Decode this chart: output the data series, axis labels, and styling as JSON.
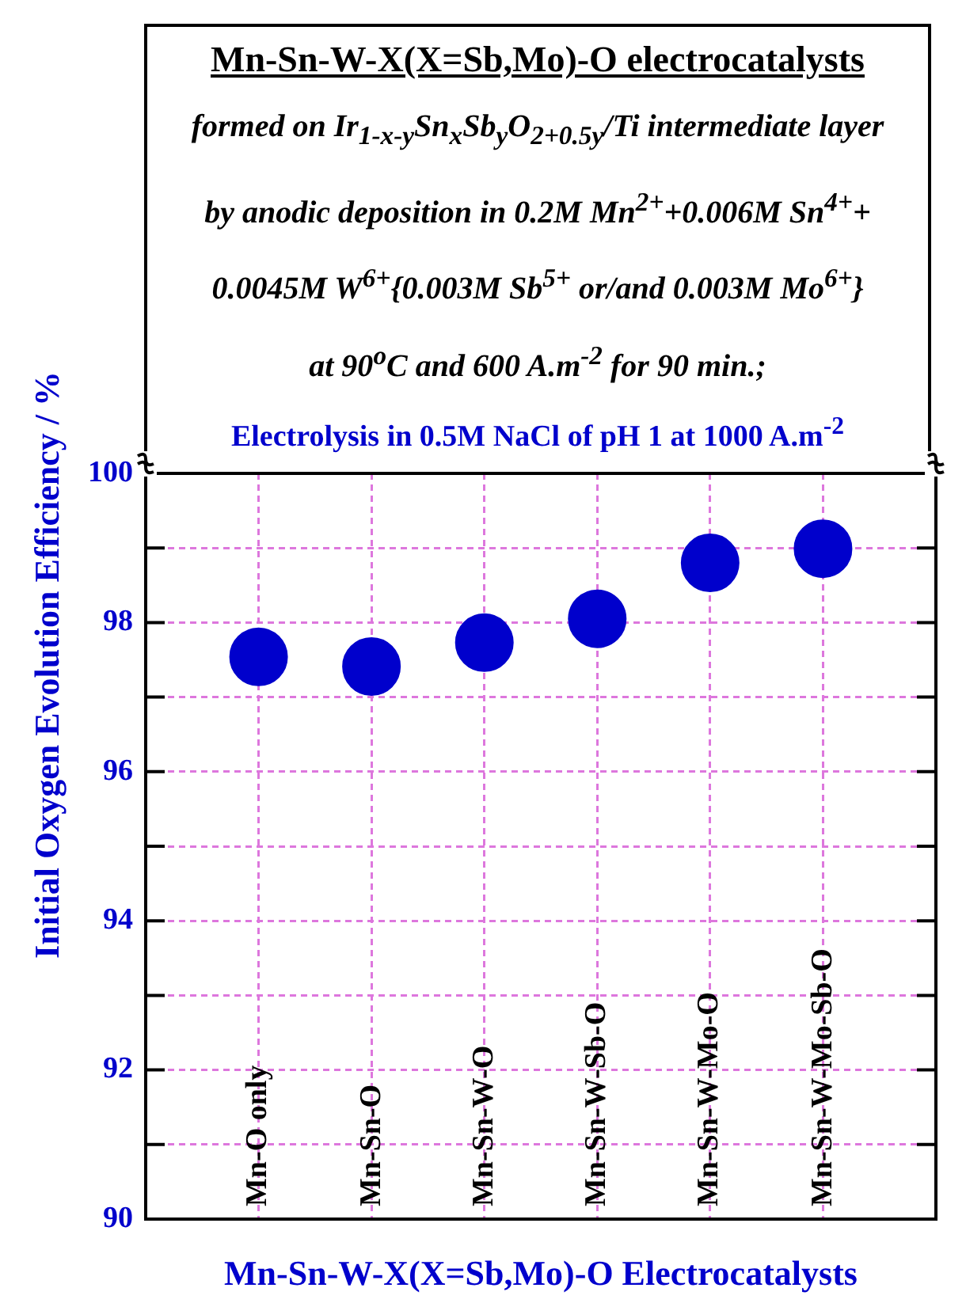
{
  "chart_data": {
    "type": "scatter",
    "title": "Mn-Sn-W-X(X=Sb,Mo)-O electrocatalysts",
    "subtitle": "formed on Ir$_{1-x-y}$Sn$_{x}$Sb$_{y}$O$_{2+0.5y}$/Ti intermediate layer\nby anodic deposition in 0.2M Mn$^{2+}$+0.006M Sn$^{4+}$+\n0.0045M W$^{6+}${0.003M Sb$^{5+}$ or/and 0.003M Mo$^{6+}$}\nat 90$^{o}$C and 600 A.m$^{-2}$ for 90 min.;",
    "annotations": [
      "Electrolysis in 0.5M NaCl of pH 1 at 1000 A.m$^{-2}$"
    ],
    "xlabel": "Mn-Sn-W-X(X=Sb,Mo)-O Electrocatalysts",
    "ylabel": "Initial Oxygen Evolution Efficiency / %",
    "categories": [
      "Mn-O only",
      "Mn-Sn-O",
      "Mn-Sn-W-O",
      "Mn-Sn-W-Sb-O",
      "Mn-Sn-W-Mo-O",
      "Mn-Sn-W-Mo-Sb-O"
    ],
    "values": [
      97.54,
      97.41,
      97.73,
      98.05,
      98.8,
      98.99
    ],
    "color": "#0000cc",
    "marker": "circle",
    "ylim": [
      90,
      100
    ],
    "yticks": [
      90,
      {
        "value": 91,
        "label": null
      },
      92,
      {
        "value": 93,
        "label": null
      },
      94,
      {
        "value": 95,
        "label": null
      },
      96,
      {
        "value": 97,
        "label": null
      },
      98,
      {
        "value": 99,
        "label": null
      },
      100
    ],
    "grid": true,
    "legend": false
  }
}
